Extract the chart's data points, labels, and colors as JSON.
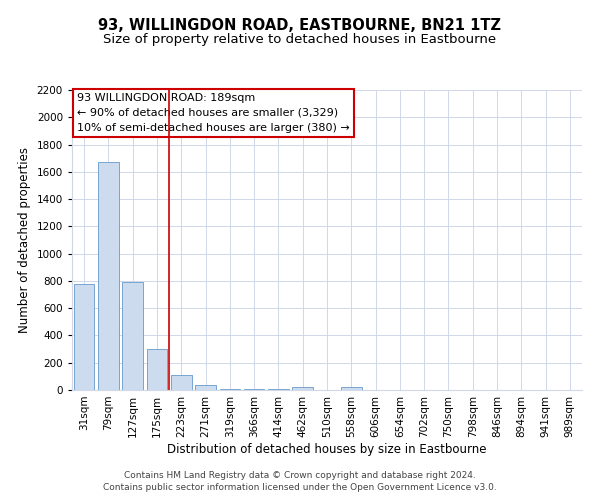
{
  "title": "93, WILLINGDON ROAD, EASTBOURNE, BN21 1TZ",
  "subtitle": "Size of property relative to detached houses in Eastbourne",
  "xlabel": "Distribution of detached houses by size in Eastbourne",
  "ylabel": "Number of detached properties",
  "categories": [
    "31sqm",
    "79sqm",
    "127sqm",
    "175sqm",
    "223sqm",
    "271sqm",
    "319sqm",
    "366sqm",
    "414sqm",
    "462sqm",
    "510sqm",
    "558sqm",
    "606sqm",
    "654sqm",
    "702sqm",
    "750sqm",
    "798sqm",
    "846sqm",
    "894sqm",
    "941sqm",
    "989sqm"
  ],
  "values": [
    780,
    1670,
    795,
    300,
    110,
    40,
    10,
    10,
    10,
    20,
    0,
    20,
    0,
    0,
    0,
    0,
    0,
    0,
    0,
    0,
    0
  ],
  "bar_color": "#ccdcee",
  "bar_edge_color": "#6699cc",
  "vline_x": 3.5,
  "vline_color": "#cc0000",
  "annotation_text_line1": "93 WILLINGDON ROAD: 189sqm",
  "annotation_text_line2": "← 90% of detached houses are smaller (3,329)",
  "annotation_text_line3": "10% of semi-detached houses are larger (380) →",
  "annotation_box_color": "#ffffff",
  "annotation_box_edge": "#cc0000",
  "ylim": [
    0,
    2200
  ],
  "yticks": [
    0,
    200,
    400,
    600,
    800,
    1000,
    1200,
    1400,
    1600,
    1800,
    2000,
    2200
  ],
  "footer_line1": "Contains HM Land Registry data © Crown copyright and database right 2024.",
  "footer_line2": "Contains public sector information licensed under the Open Government Licence v3.0.",
  "bg_color": "#ffffff",
  "grid_color": "#d0d8e8",
  "title_fontsize": 10.5,
  "subtitle_fontsize": 9.5,
  "axis_label_fontsize": 8.5,
  "tick_fontsize": 7.5,
  "annotation_fontsize": 8,
  "footer_fontsize": 6.5
}
